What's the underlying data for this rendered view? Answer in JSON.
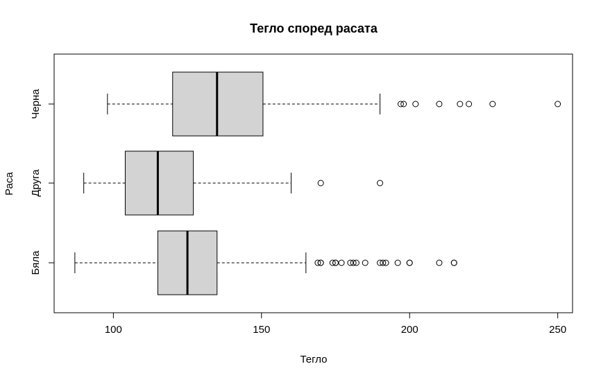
{
  "chart_data": {
    "type": "boxplot",
    "orientation": "horizontal",
    "title": "Тегло според расата",
    "xlabel": "Тегло",
    "ylabel": "Раса",
    "xlim": [
      80,
      255
    ],
    "xticks": [
      100,
      150,
      200,
      250
    ],
    "grid": false,
    "categories": [
      "Бяла",
      "Друга",
      "Черна"
    ],
    "series": [
      {
        "category": "Бяла",
        "whisker_low": 87,
        "q1": 115,
        "median": 125,
        "q3": 135,
        "whisker_high": 165,
        "outliers": [
          169,
          170,
          170,
          174,
          175,
          175,
          177,
          180,
          181,
          182,
          185,
          190,
          191,
          192,
          196,
          200,
          200,
          210,
          215,
          215
        ]
      },
      {
        "category": "Друга",
        "whisker_low": 90,
        "q1": 104,
        "median": 115,
        "q3": 127,
        "whisker_high": 160,
        "outliers": [
          170,
          190
        ]
      },
      {
        "category": "Черна",
        "whisker_low": 98,
        "q1": 120,
        "median": 135,
        "q3": 150.5,
        "whisker_high": 190,
        "outliers": [
          197,
          198,
          202,
          210,
          217,
          220,
          228,
          250
        ]
      }
    ],
    "colors": {
      "box_fill": "#d3d3d3",
      "stroke": "#000000"
    }
  }
}
